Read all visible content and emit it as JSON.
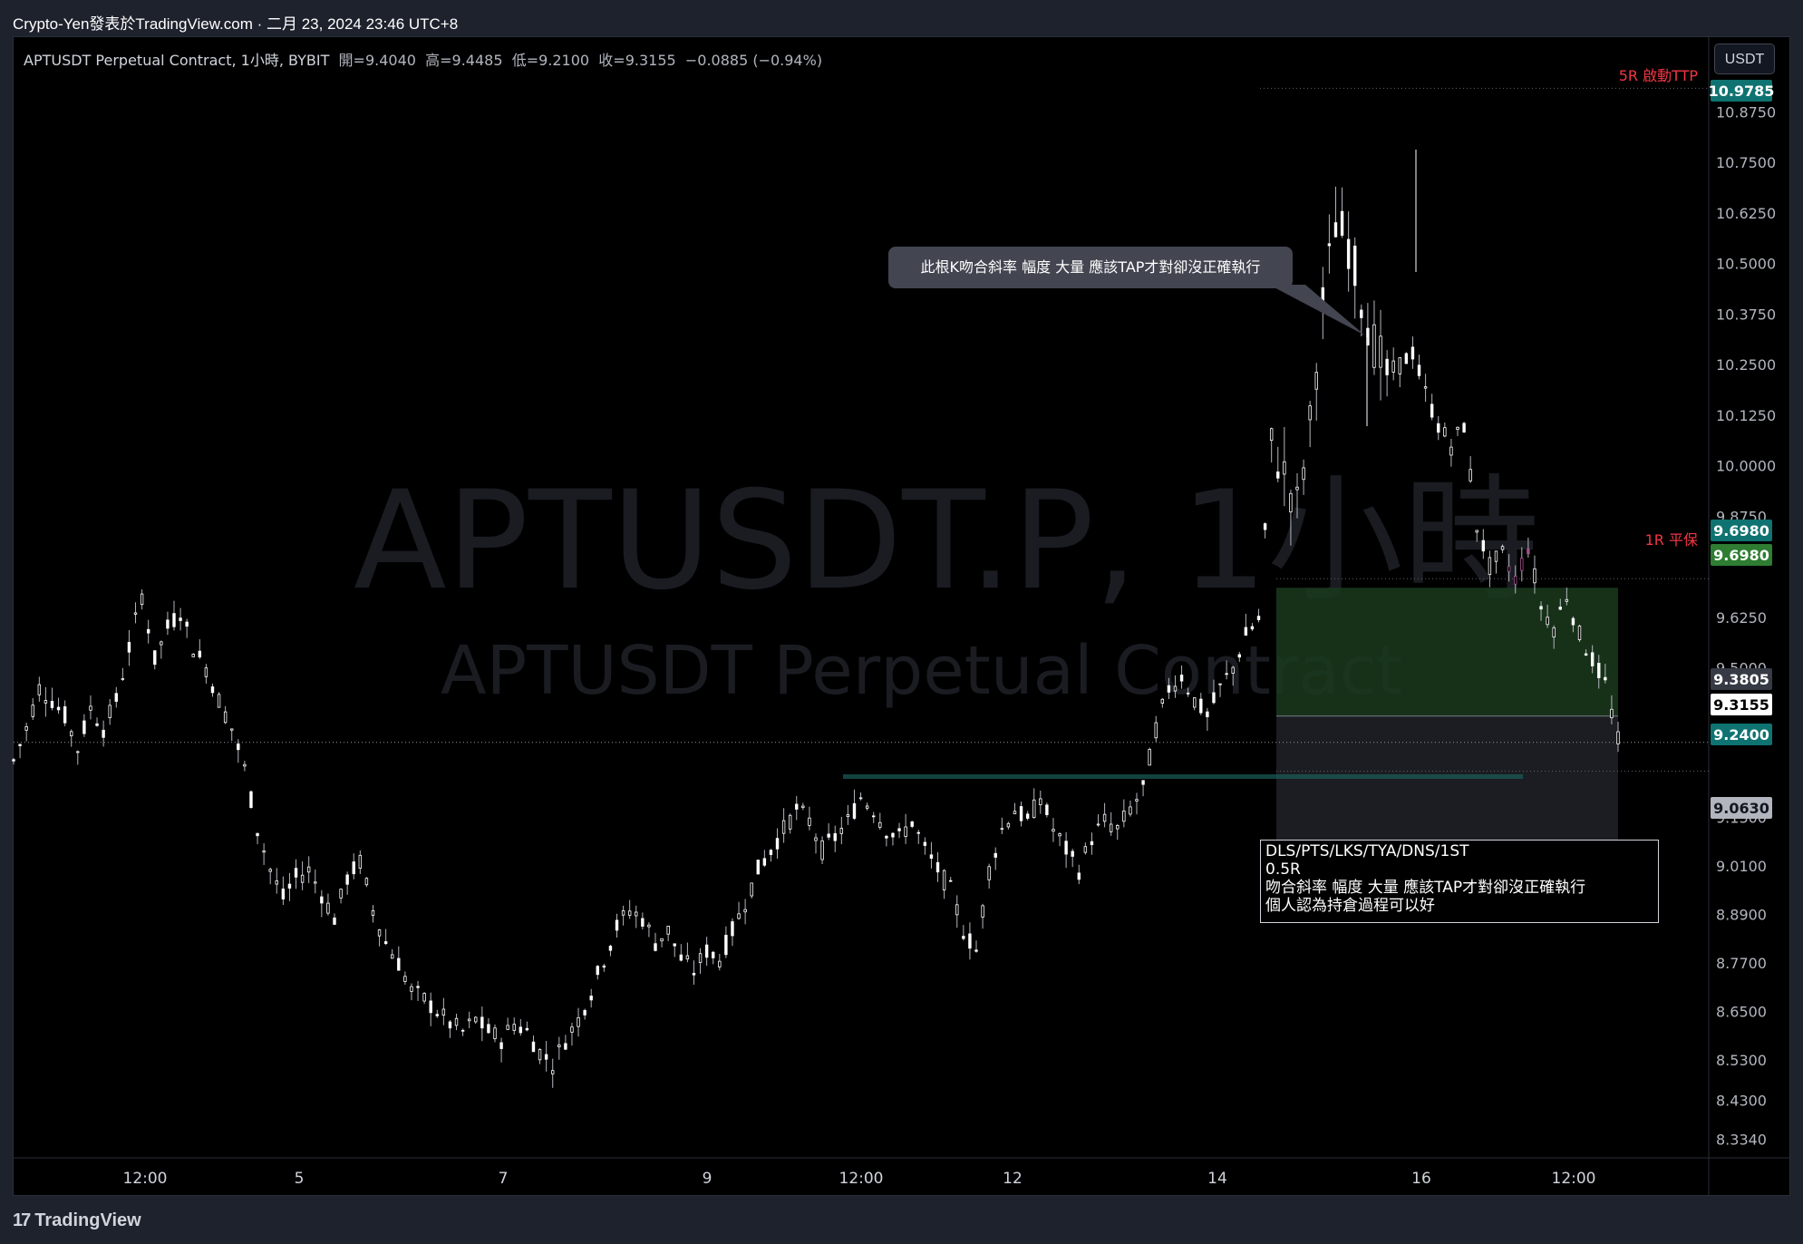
{
  "header": {
    "publisher": "Crypto-Yen發表於TradingView.com",
    "separator": " · ",
    "datetime": "二月 23, 2024 23:46 UTC+8"
  },
  "legend": {
    "symbol": "APTUSDT Perpetual Contract, 1小時, BYBIT",
    "open": "開=9.4040",
    "high": "高=9.4485",
    "low": "低=9.2100",
    "close": "收=9.3155",
    "change": "−0.0885 (−0.94%)"
  },
  "currency_button": "USDT",
  "watermark": {
    "line1": "APTUSDT.P, 1小時",
    "line2": "APTUSDT Perpetual Contract"
  },
  "callout": "此根K吻合斜率 幅度 大量 應該TAP才對卻沒正確執行",
  "note": {
    "lines": [
      "DLS/PTS/LKS/TYA/DNS/1ST",
      "0.5R",
      "吻合斜率 幅度 大量 應該TAP才對卻沒正確執行",
      "個人認為持倉過程可以好"
    ]
  },
  "level_labels": {
    "tp": "5R 啟動TTP",
    "be": "1R 平保"
  },
  "footer": {
    "brand": "TradingView",
    "mark": "17"
  },
  "colors": {
    "up": "#ffffff",
    "down": "#ffffff",
    "bg": "#000000",
    "teal_badge": "#0f7371",
    "green_badge": "#2e7d32",
    "red_text": "#f23645",
    "profit_zone": "#1b3a1d",
    "loss_zone": "#1e1f24"
  },
  "chart_data": {
    "type": "candlestick",
    "symbol": "APTUSDT.P",
    "interval": "1小時",
    "y_axis": {
      "min": 8.29,
      "max": 11.06,
      "ticks": [
        10.875,
        10.75,
        10.625,
        10.5,
        10.375,
        10.25,
        10.125,
        10.0,
        9.875,
        9.625,
        9.5,
        9.13,
        9.01,
        8.89,
        8.77,
        8.65,
        8.53,
        8.43,
        8.334
      ],
      "tick_labels": [
        "10.8750",
        "10.7500",
        "10.6250",
        "10.5000",
        "10.3750",
        "10.2500",
        "10.1250",
        "10.0000",
        "9.8750",
        "9.6250",
        "9.5000",
        "9.1300",
        "9.0100",
        "8.8900",
        "8.7700",
        "8.6500",
        "8.5300",
        "8.4300",
        "8.3340"
      ]
    },
    "x_axis": {
      "tick_labels": [
        "12:00",
        "5",
        "7",
        "9",
        "12:00",
        "12",
        "14",
        "16",
        "12:00"
      ]
    },
    "price_badges": [
      {
        "value": 10.9785,
        "label": "10.9785",
        "style": "teal"
      },
      {
        "value": 9.698,
        "label": "9.6980",
        "style": "teal"
      },
      {
        "value": 9.698,
        "label": "9.6980",
        "style": "green"
      },
      {
        "value": 9.3805,
        "label": "9.3805",
        "style": "gray"
      },
      {
        "value": 9.3155,
        "label": "9.3155",
        "style": "white"
      },
      {
        "value": 9.24,
        "label": "9.2400",
        "style": "teal"
      },
      {
        "value": 9.063,
        "label": "9.0630",
        "style": "lightgray"
      }
    ],
    "position": {
      "entry": 9.3805,
      "take_profit": 9.698,
      "stop": 9.063,
      "current": 9.3155,
      "line": 9.24
    },
    "ohlc_last": {
      "open": 9.404,
      "high": 9.4485,
      "low": 9.21,
      "close": 9.3155
    },
    "price_path": [
      [
        0,
        9.27
      ],
      [
        2,
        9.35
      ],
      [
        4,
        9.45
      ],
      [
        6,
        9.42
      ],
      [
        8,
        9.38
      ],
      [
        10,
        9.3
      ],
      [
        12,
        9.4
      ],
      [
        14,
        9.35
      ],
      [
        16,
        9.42
      ],
      [
        18,
        9.55
      ],
      [
        20,
        9.68
      ],
      [
        22,
        9.52
      ],
      [
        24,
        9.6
      ],
      [
        26,
        9.64
      ],
      [
        28,
        9.55
      ],
      [
        30,
        9.5
      ],
      [
        32,
        9.42
      ],
      [
        34,
        9.35
      ],
      [
        36,
        9.25
      ],
      [
        38,
        9.1
      ],
      [
        40,
        9.0
      ],
      [
        42,
        8.93
      ],
      [
        44,
        8.98
      ],
      [
        46,
        9.0
      ],
      [
        48,
        8.94
      ],
      [
        50,
        8.88
      ],
      [
        52,
        8.98
      ],
      [
        54,
        9.02
      ],
      [
        56,
        8.9
      ],
      [
        58,
        8.82
      ],
      [
        60,
        8.77
      ],
      [
        62,
        8.7
      ],
      [
        64,
        8.68
      ],
      [
        66,
        8.65
      ],
      [
        68,
        8.62
      ],
      [
        70,
        8.6
      ],
      [
        72,
        8.63
      ],
      [
        74,
        8.6
      ],
      [
        76,
        8.58
      ],
      [
        78,
        8.62
      ],
      [
        80,
        8.6
      ],
      [
        82,
        8.55
      ],
      [
        84,
        8.52
      ],
      [
        86,
        8.58
      ],
      [
        88,
        8.63
      ],
      [
        90,
        8.7
      ],
      [
        92,
        8.78
      ],
      [
        94,
        8.86
      ],
      [
        96,
        8.9
      ],
      [
        98,
        8.88
      ],
      [
        100,
        8.82
      ],
      [
        102,
        8.85
      ],
      [
        104,
        8.78
      ],
      [
        106,
        8.75
      ],
      [
        108,
        8.8
      ],
      [
        110,
        8.78
      ],
      [
        112,
        8.85
      ],
      [
        114,
        8.92
      ],
      [
        116,
        9.0
      ],
      [
        118,
        9.05
      ],
      [
        120,
        9.1
      ],
      [
        122,
        9.15
      ],
      [
        124,
        9.12
      ],
      [
        126,
        9.05
      ],
      [
        128,
        9.08
      ],
      [
        130,
        9.12
      ],
      [
        132,
        9.18
      ],
      [
        134,
        9.15
      ],
      [
        136,
        9.1
      ],
      [
        138,
        9.08
      ],
      [
        140,
        9.12
      ],
      [
        142,
        9.05
      ],
      [
        144,
        9.0
      ],
      [
        146,
        8.95
      ],
      [
        148,
        8.85
      ],
      [
        150,
        8.8
      ],
      [
        152,
        9.0
      ],
      [
        154,
        9.1
      ],
      [
        156,
        9.15
      ],
      [
        158,
        9.12
      ],
      [
        160,
        9.18
      ],
      [
        162,
        9.1
      ],
      [
        164,
        9.05
      ],
      [
        166,
        9.0
      ],
      [
        168,
        9.08
      ],
      [
        170,
        9.12
      ],
      [
        172,
        9.1
      ],
      [
        174,
        9.15
      ],
      [
        176,
        9.2
      ],
      [
        178,
        9.35
      ],
      [
        180,
        9.45
      ],
      [
        182,
        9.48
      ],
      [
        184,
        9.42
      ],
      [
        186,
        9.38
      ],
      [
        188,
        9.45
      ],
      [
        190,
        9.5
      ],
      [
        192,
        9.58
      ],
      [
        194,
        9.62
      ],
      [
        196,
        10.05
      ],
      [
        198,
        9.98
      ],
      [
        200,
        9.9
      ],
      [
        202,
        10.1
      ],
      [
        204,
        10.4
      ],
      [
        206,
        10.6
      ],
      [
        208,
        10.55
      ],
      [
        210,
        10.42
      ],
      [
        212,
        10.3
      ],
      [
        214,
        10.22
      ],
      [
        216,
        10.25
      ],
      [
        218,
        10.28
      ],
      [
        220,
        10.18
      ],
      [
        222,
        10.1
      ],
      [
        224,
        10.05
      ],
      [
        226,
        10.1
      ],
      [
        228,
        9.85
      ],
      [
        230,
        9.75
      ],
      [
        232,
        9.78
      ],
      [
        234,
        9.72
      ],
      [
        236,
        9.8
      ],
      [
        238,
        9.65
      ],
      [
        240,
        9.6
      ],
      [
        242,
        9.68
      ],
      [
        244,
        9.58
      ],
      [
        246,
        9.52
      ],
      [
        248,
        9.46
      ],
      [
        250,
        9.32
      ]
    ]
  }
}
